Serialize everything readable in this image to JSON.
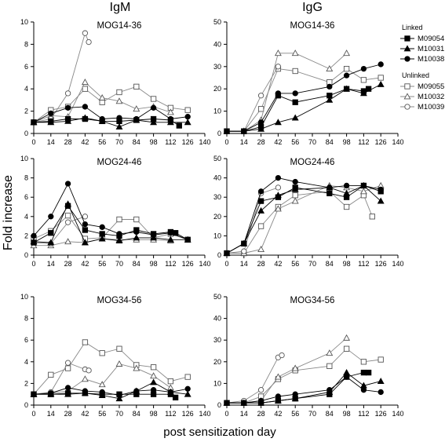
{
  "figure": {
    "col_titles": [
      "IgM",
      "IgG"
    ],
    "ylabel": "Fold increase",
    "xlabel": "post sensitization day"
  },
  "legend": {
    "groups": [
      {
        "title": "Linked",
        "items": [
          {
            "name": "M09054",
            "marker": "square",
            "filled": true
          },
          {
            "name": "M10031",
            "marker": "triangle",
            "filled": true
          },
          {
            "name": "M10038",
            "marker": "circle",
            "filled": true
          }
        ]
      },
      {
        "title": "Unlinked",
        "items": [
          {
            "name": "M09055",
            "marker": "square",
            "filled": false
          },
          {
            "name": "M10032",
            "marker": "triangle",
            "filled": false
          },
          {
            "name": "M10039",
            "marker": "circle",
            "filled": false
          }
        ]
      }
    ],
    "colors": {
      "linked": "#000000",
      "unlinked": "#888888",
      "marker_open_fill": "#ffffff"
    }
  },
  "chart_data": [
    {
      "type": "line",
      "title": "MOG14-36",
      "column": "IgM",
      "xlim": [
        0,
        140
      ],
      "ylim": [
        0,
        10
      ],
      "xticks": [
        0,
        14,
        28,
        42,
        56,
        70,
        84,
        98,
        112,
        126,
        140
      ],
      "yticks": [
        0,
        2,
        4,
        6,
        8,
        10
      ],
      "series": [
        {
          "name": "M09054",
          "x": [
            0,
            14,
            28,
            42,
            56,
            70,
            84,
            98,
            112,
            119
          ],
          "y": [
            1.0,
            1.1,
            1.3,
            1.3,
            1.1,
            1.1,
            1.2,
            1.3,
            1.2,
            0.7
          ]
        },
        {
          "name": "M10031",
          "x": [
            0,
            14,
            28,
            42,
            56,
            70,
            84,
            98,
            112,
            126
          ],
          "y": [
            1.0,
            1.0,
            1.1,
            1.4,
            1.1,
            0.6,
            1.2,
            1.0,
            1.0,
            1.0
          ]
        },
        {
          "name": "M10038",
          "x": [
            0,
            14,
            28,
            42,
            56,
            70,
            84,
            98,
            112,
            126
          ],
          "y": [
            1.0,
            1.8,
            2.3,
            2.4,
            1.3,
            1.4,
            1.3,
            2.3,
            1.3,
            1.5
          ]
        },
        {
          "name": "M09055",
          "x": [
            0,
            14,
            28,
            42,
            56,
            70,
            84,
            98,
            112,
            126
          ],
          "y": [
            1.0,
            2.1,
            2.4,
            4.0,
            2.8,
            3.7,
            4.2,
            3.1,
            2.3,
            2.1
          ]
        },
        {
          "name": "M10032",
          "x": [
            0,
            14,
            28,
            42,
            56,
            70,
            84,
            98,
            112
          ],
          "y": [
            1.0,
            1.6,
            1.5,
            4.6,
            3.2,
            2.9,
            2.2,
            2.4,
            1.9
          ]
        },
        {
          "name": "M10039",
          "x": [
            0,
            14,
            28,
            42,
            45
          ],
          "y": [
            1.0,
            1.3,
            3.6,
            9.0,
            8.2
          ]
        }
      ]
    },
    {
      "type": "line",
      "title": "MOG14-36",
      "column": "IgG",
      "xlim": [
        0,
        140
      ],
      "ylim": [
        0,
        50
      ],
      "xticks": [
        0,
        14,
        28,
        42,
        56,
        70,
        84,
        98,
        112,
        126,
        140
      ],
      "yticks": [
        0,
        10,
        20,
        30,
        40,
        50
      ],
      "series": [
        {
          "name": "M09054",
          "x": [
            0,
            14,
            28,
            42,
            56,
            84,
            98,
            112,
            116
          ],
          "y": [
            1,
            1,
            3,
            17,
            14,
            17,
            20,
            19,
            20
          ]
        },
        {
          "name": "M10031",
          "x": [
            0,
            14,
            28,
            42,
            56,
            84,
            98,
            112,
            126
          ],
          "y": [
            1,
            1,
            2,
            5,
            7,
            15,
            20,
            18,
            22
          ]
        },
        {
          "name": "M10038",
          "x": [
            0,
            14,
            28,
            42,
            56,
            84,
            98,
            112,
            126
          ],
          "y": [
            1,
            1,
            5,
            18,
            18,
            21,
            26,
            29,
            31
          ]
        },
        {
          "name": "M09055",
          "x": [
            0,
            14,
            28,
            42,
            56,
            84,
            98,
            112,
            126
          ],
          "y": [
            1,
            1,
            11,
            29,
            28,
            23,
            29,
            24,
            25
          ]
        },
        {
          "name": "M10032",
          "x": [
            0,
            14,
            28,
            42,
            56,
            84,
            98
          ],
          "y": [
            1,
            1,
            6,
            36,
            36,
            29,
            36
          ]
        },
        {
          "name": "M10039",
          "x": [
            0,
            14,
            28,
            42
          ],
          "y": [
            1,
            1,
            17,
            30
          ]
        }
      ]
    },
    {
      "type": "line",
      "title": "MOG24-46",
      "column": "IgM",
      "xlim": [
        0,
        140
      ],
      "ylim": [
        0,
        10
      ],
      "xticks": [
        0,
        14,
        28,
        42,
        56,
        70,
        84,
        98,
        112,
        126,
        140
      ],
      "yticks": [
        0,
        2,
        4,
        6,
        8,
        10
      ],
      "series": [
        {
          "name": "M09054",
          "x": [
            0,
            14,
            28,
            42,
            56,
            70,
            84,
            98,
            112,
            116,
            126
          ],
          "y": [
            1.3,
            2.3,
            5.1,
            2.6,
            2.2,
            2.0,
            2.6,
            2.2,
            2.4,
            2.3,
            1.6
          ]
        },
        {
          "name": "M10031",
          "x": [
            0,
            14,
            28,
            42,
            56,
            70,
            84,
            98,
            112,
            126
          ],
          "y": [
            1.4,
            1.3,
            5.3,
            1.3,
            1.7,
            1.5,
            1.8,
            1.8,
            1.6,
            1.6
          ]
        },
        {
          "name": "M10038",
          "x": [
            0,
            14,
            28,
            42,
            56,
            70,
            84,
            98,
            112,
            126
          ],
          "y": [
            2.0,
            4.0,
            7.4,
            3.2,
            2.9,
            2.2,
            2.4,
            2.1,
            2.3,
            1.6
          ]
        },
        {
          "name": "M09055",
          "x": [
            0,
            14,
            28,
            42,
            56,
            70,
            84,
            98,
            112,
            126
          ],
          "y": [
            1.7,
            2.5,
            4.1,
            1.7,
            1.8,
            3.7,
            3.7,
            1.8,
            2.2,
            1.6
          ]
        },
        {
          "name": "M10032",
          "x": [
            0,
            14,
            28,
            42,
            56,
            70,
            84,
            98,
            112
          ],
          "y": [
            1.0,
            1.0,
            1.4,
            1.3,
            1.7,
            1.6,
            1.6,
            1.6,
            1.5
          ]
        },
        {
          "name": "M10039",
          "x": [
            0,
            14,
            28,
            42
          ],
          "y": [
            1.3,
            1.2,
            3.4,
            4.0
          ]
        }
      ]
    },
    {
      "type": "line",
      "title": "MOG24-46",
      "column": "IgG",
      "xlim": [
        0,
        140
      ],
      "ylim": [
        0,
        50
      ],
      "xticks": [
        0,
        14,
        28,
        42,
        56,
        70,
        84,
        98,
        112,
        126,
        140
      ],
      "yticks": [
        0,
        10,
        20,
        30,
        40,
        50
      ],
      "series": [
        {
          "name": "M09054",
          "x": [
            0,
            14,
            28,
            42,
            56,
            84,
            98,
            112,
            126
          ],
          "y": [
            1,
            6,
            28,
            30,
            35,
            32,
            30,
            36,
            33
          ]
        },
        {
          "name": "M10031",
          "x": [
            0,
            14,
            28,
            42,
            56,
            84,
            98,
            112,
            126
          ],
          "y": [
            1,
            6,
            23,
            31,
            34,
            35,
            32,
            36,
            28
          ]
        },
        {
          "name": "M10038",
          "x": [
            0,
            14,
            28,
            42,
            56,
            84,
            98,
            112,
            126
          ],
          "y": [
            1,
            6,
            33,
            40,
            38,
            35,
            36,
            36,
            34
          ]
        },
        {
          "name": "M09055",
          "x": [
            0,
            14,
            28,
            42,
            56,
            84,
            98,
            112,
            119
          ],
          "y": [
            1,
            1,
            15,
            25,
            31,
            33,
            25,
            31,
            20
          ]
        },
        {
          "name": "M10032",
          "x": [
            0,
            14,
            28,
            42,
            56,
            84,
            98,
            112,
            126
          ],
          "y": [
            1,
            1,
            3,
            24,
            28,
            36,
            35,
            33,
            36
          ]
        },
        {
          "name": "M10039",
          "x": [
            0,
            14,
            28,
            42
          ],
          "y": [
            1,
            2,
            32,
            35
          ]
        }
      ]
    },
    {
      "type": "line",
      "title": "MOG34-56",
      "column": "IgM",
      "xlim": [
        0,
        140
      ],
      "ylim": [
        0,
        10
      ],
      "xticks": [
        0,
        14,
        28,
        42,
        56,
        70,
        84,
        98,
        112,
        126,
        140
      ],
      "yticks": [
        0,
        2,
        4,
        6,
        8,
        10
      ],
      "series": [
        {
          "name": "M09054",
          "x": [
            0,
            14,
            28,
            42,
            56,
            70,
            84,
            98,
            112,
            116
          ],
          "y": [
            1.0,
            1.0,
            1.1,
            1.1,
            1.0,
            1.0,
            1.0,
            1.0,
            1.0,
            0.7
          ]
        },
        {
          "name": "M10031",
          "x": [
            0,
            14,
            28,
            42,
            56,
            70,
            84,
            98,
            112,
            126
          ],
          "y": [
            1.0,
            1.0,
            1.0,
            1.1,
            0.9,
            0.6,
            1.3,
            2.1,
            1.2,
            1.0
          ]
        },
        {
          "name": "M10038",
          "x": [
            0,
            14,
            28,
            42,
            56,
            70,
            84,
            98,
            112,
            126
          ],
          "y": [
            1.0,
            1.1,
            1.6,
            1.3,
            1.2,
            0.9,
            1.3,
            1.4,
            1.2,
            1.5
          ]
        },
        {
          "name": "M09055",
          "x": [
            0,
            14,
            28,
            42,
            56,
            70,
            84,
            98,
            112,
            126
          ],
          "y": [
            1.0,
            2.8,
            3.4,
            5.8,
            4.8,
            5.2,
            3.7,
            3.5,
            2.2,
            2.6
          ]
        },
        {
          "name": "M10032",
          "x": [
            0,
            14,
            28,
            42,
            56,
            70,
            84,
            98,
            112
          ],
          "y": [
            1.0,
            1.1,
            1.3,
            2.4,
            1.9,
            3.8,
            3.4,
            2.7,
            1.6
          ]
        },
        {
          "name": "M10039",
          "x": [
            0,
            14,
            28,
            42,
            45
          ],
          "y": [
            1.0,
            1.2,
            3.9,
            3.3,
            3.2
          ]
        }
      ]
    },
    {
      "type": "line",
      "title": "MOG34-56",
      "column": "IgG",
      "xlim": [
        0,
        140
      ],
      "ylim": [
        0,
        50
      ],
      "xticks": [
        0,
        14,
        28,
        42,
        56,
        70,
        84,
        98,
        112,
        126,
        140
      ],
      "yticks": [
        0,
        10,
        20,
        30,
        40,
        50
      ],
      "series": [
        {
          "name": "M09054",
          "x": [
            0,
            14,
            28,
            42,
            56,
            84,
            98,
            112,
            116
          ],
          "y": [
            1,
            1,
            1,
            2,
            3,
            5,
            13,
            15,
            15
          ]
        },
        {
          "name": "M10031",
          "x": [
            0,
            14,
            28,
            42,
            56,
            84,
            98,
            112,
            126
          ],
          "y": [
            1,
            1,
            1,
            2,
            3,
            6,
            15,
            9,
            11
          ]
        },
        {
          "name": "M10038",
          "x": [
            0,
            14,
            28,
            42,
            56,
            84,
            98,
            112,
            126
          ],
          "y": [
            1,
            1,
            2,
            4,
            5,
            7,
            13,
            7,
            6
          ]
        },
        {
          "name": "M09055",
          "x": [
            0,
            14,
            28,
            42,
            56,
            84,
            98,
            112,
            126
          ],
          "y": [
            1,
            1,
            4,
            12,
            16,
            18,
            26,
            20,
            21
          ]
        },
        {
          "name": "M10032",
          "x": [
            0,
            14,
            28,
            42,
            56,
            84,
            98
          ],
          "y": [
            1,
            1,
            2,
            13,
            17,
            24,
            31
          ]
        },
        {
          "name": "M10039",
          "x": [
            0,
            14,
            28,
            42,
            45
          ],
          "y": [
            1,
            2,
            7,
            22,
            23
          ]
        }
      ]
    }
  ]
}
